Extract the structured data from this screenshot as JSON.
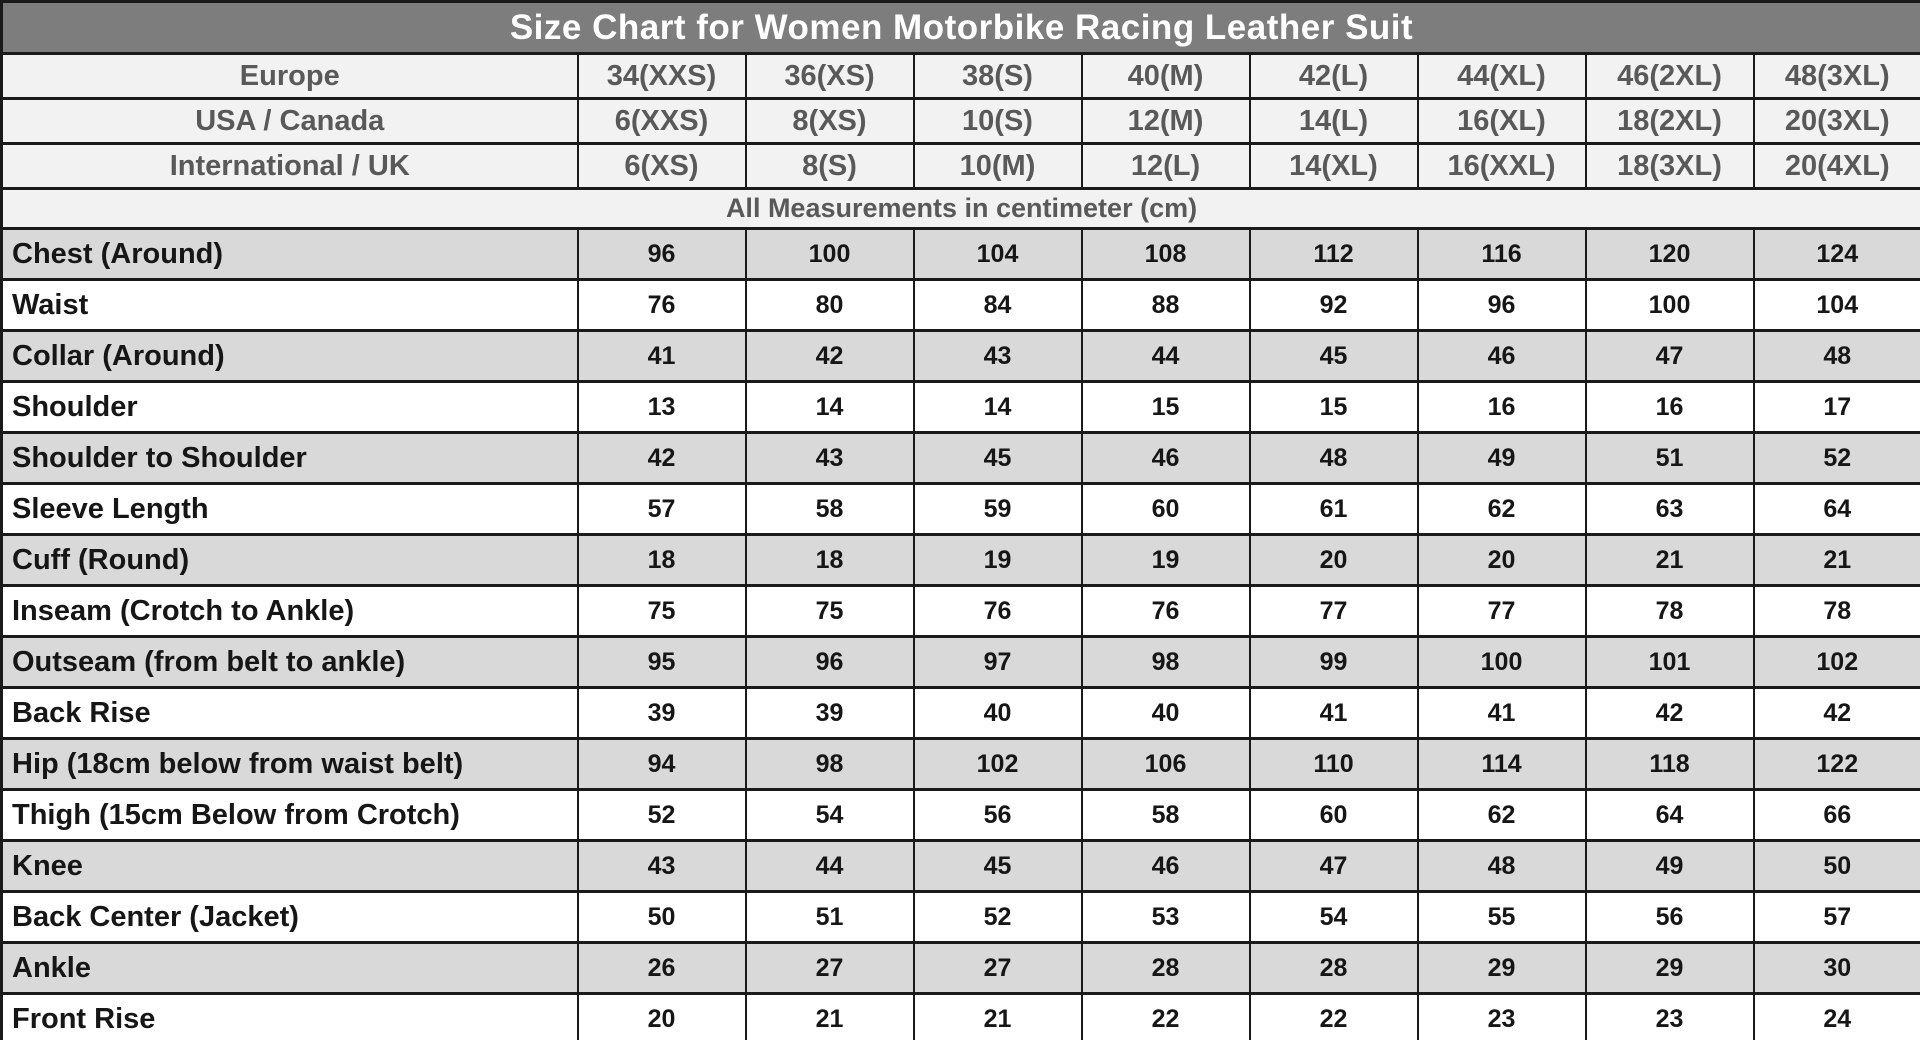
{
  "chart_data": {
    "type": "table",
    "title": "Size Chart for Women Motorbike Racing Leather Suit",
    "note": "All Measurements in centimeter (cm)",
    "size_rows": [
      {
        "label": "Europe",
        "sizes": [
          "34(XXS)",
          "36(XS)",
          "38(S)",
          "40(M)",
          "42(L)",
          "44(XL)",
          "46(2XL)",
          "48(3XL)"
        ]
      },
      {
        "label": "USA / Canada",
        "sizes": [
          "6(XXS)",
          "8(XS)",
          "10(S)",
          "12(M)",
          "14(L)",
          "16(XL)",
          "18(2XL)",
          "20(3XL)"
        ]
      },
      {
        "label": "International / UK",
        "sizes": [
          "6(XS)",
          "8(S)",
          "10(M)",
          "12(L)",
          "14(XL)",
          "16(XXL)",
          "18(3XL)",
          "20(4XL)"
        ]
      }
    ],
    "measurement_rows": [
      {
        "label": "Chest (Around)",
        "values": [
          "96",
          "100",
          "104",
          "108",
          "112",
          "116",
          "120",
          "124"
        ]
      },
      {
        "label": "Waist",
        "values": [
          "76",
          "80",
          "84",
          "88",
          "92",
          "96",
          "100",
          "104"
        ]
      },
      {
        "label": "Collar (Around)",
        "values": [
          "41",
          "42",
          "43",
          "44",
          "45",
          "46",
          "47",
          "48"
        ]
      },
      {
        "label": "Shoulder",
        "values": [
          "13",
          "14",
          "14",
          "15",
          "15",
          "16",
          "16",
          "17"
        ]
      },
      {
        "label": "Shoulder to Shoulder",
        "values": [
          "42",
          "43",
          "45",
          "46",
          "48",
          "49",
          "51",
          "52"
        ]
      },
      {
        "label": "Sleeve Length",
        "values": [
          "57",
          "58",
          "59",
          "60",
          "61",
          "62",
          "63",
          "64"
        ]
      },
      {
        "label": "Cuff (Round)",
        "values": [
          "18",
          "18",
          "19",
          "19",
          "20",
          "20",
          "21",
          "21"
        ]
      },
      {
        "label": "Inseam (Crotch to Ankle)",
        "values": [
          "75",
          "75",
          "76",
          "76",
          "77",
          "77",
          "78",
          "78"
        ]
      },
      {
        "label": "Outseam (from belt to ankle)",
        "values": [
          "95",
          "96",
          "97",
          "98",
          "99",
          "100",
          "101",
          "102"
        ]
      },
      {
        "label": "Back Rise",
        "values": [
          "39",
          "39",
          "40",
          "40",
          "41",
          "41",
          "42",
          "42"
        ]
      },
      {
        "label": "Hip (18cm below from waist belt)",
        "values": [
          "94",
          "98",
          "102",
          "106",
          "110",
          "114",
          "118",
          "122"
        ]
      },
      {
        "label": "Thigh (15cm Below from Crotch)",
        "values": [
          "52",
          "54",
          "56",
          "58",
          "60",
          "62",
          "64",
          "66"
        ]
      },
      {
        "label": "Knee",
        "values": [
          "43",
          "44",
          "45",
          "46",
          "47",
          "48",
          "49",
          "50"
        ]
      },
      {
        "label": "Back Center (Jacket)",
        "values": [
          "50",
          "51",
          "52",
          "53",
          "54",
          "55",
          "56",
          "57"
        ]
      },
      {
        "label": "Ankle",
        "values": [
          "26",
          "27",
          "27",
          "28",
          "28",
          "29",
          "29",
          "30"
        ]
      },
      {
        "label": "Front Rise",
        "values": [
          "20",
          "21",
          "21",
          "22",
          "22",
          "23",
          "23",
          "24"
        ]
      }
    ]
  },
  "colors": {
    "title_bg": "#7d7d7d",
    "title_text": "#ffffff",
    "header_bg": "#f2f2f2",
    "header_text": "#595959",
    "row_shade_bg": "#d9d9d9",
    "row_plain_bg": "#ffffff",
    "data_text": "#161616",
    "border": "#1a1a1a"
  }
}
